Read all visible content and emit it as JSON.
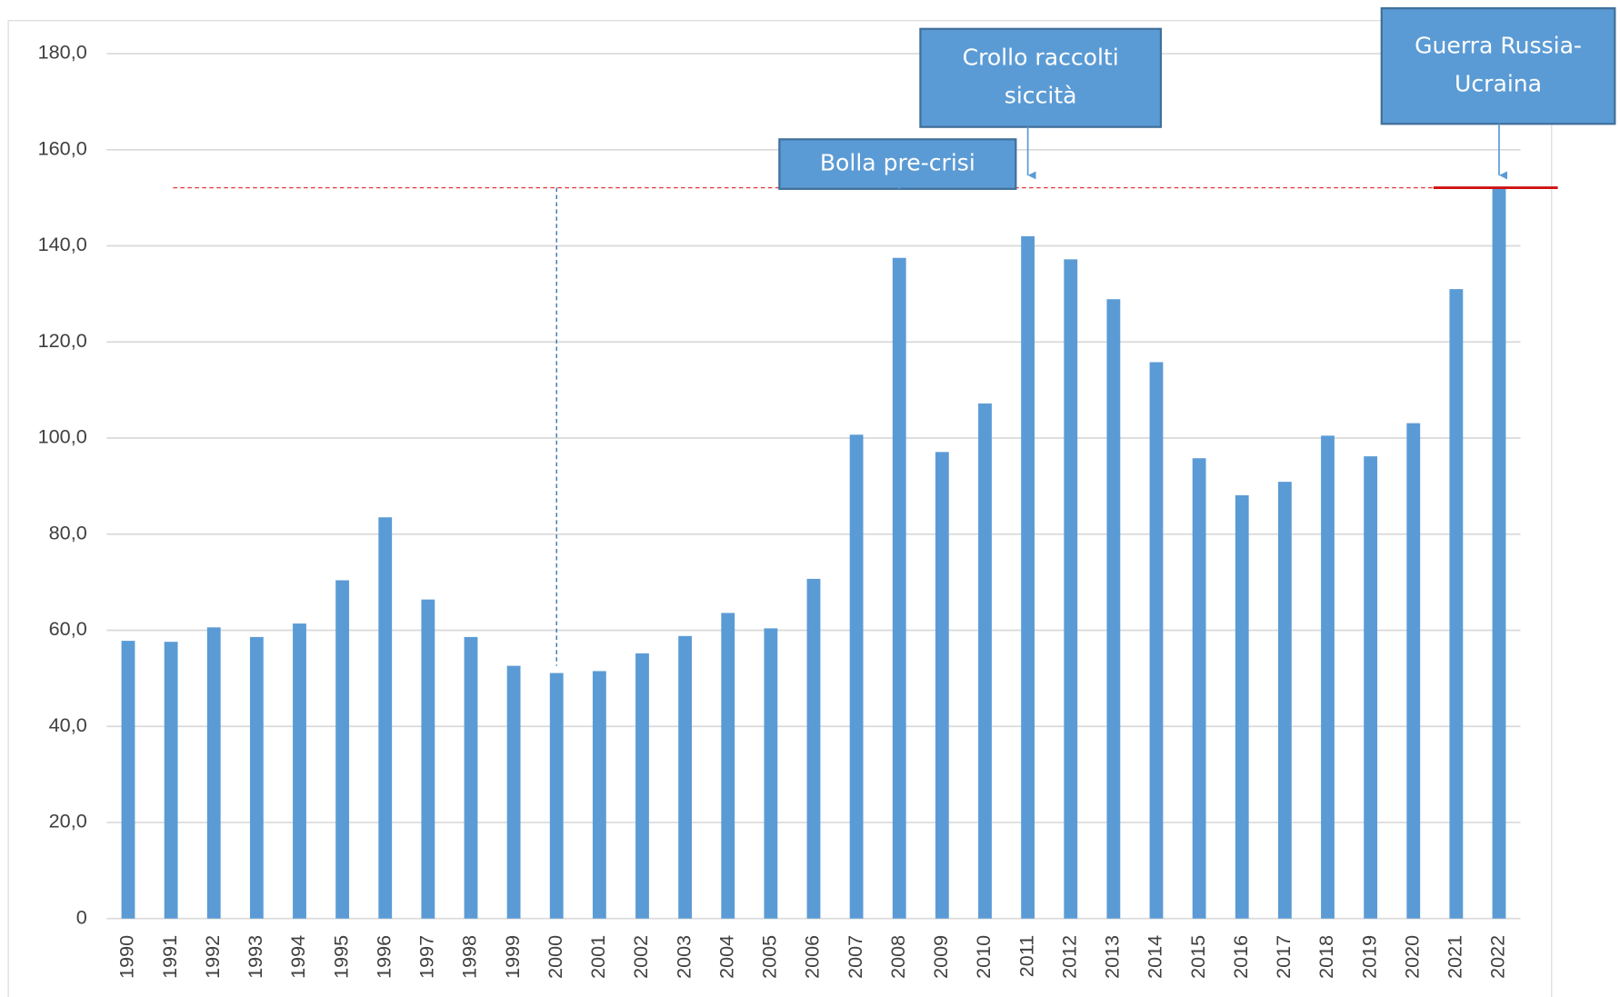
{
  "chart_data": {
    "type": "bar",
    "categories": [
      "1990",
      "1991",
      "1992",
      "1993",
      "1994",
      "1995",
      "1996",
      "1997",
      "1998",
      "1999",
      "2000",
      "2001",
      "2002",
      "2003",
      "2004",
      "2005",
      "2006",
      "2007",
      "2008",
      "2009",
      "2010",
      "2011",
      "2012",
      "2013",
      "2014",
      "2015",
      "2016",
      "2017",
      "2018",
      "2019",
      "2020",
      "2021",
      "2022"
    ],
    "values": [
      57.8,
      57.6,
      60.6,
      58.6,
      61.4,
      70.4,
      83.5,
      66.4,
      58.6,
      52.6,
      51.1,
      51.5,
      55.2,
      58.8,
      63.6,
      60.4,
      70.7,
      100.7,
      137.5,
      97.1,
      107.2,
      142.0,
      137.2,
      128.9,
      115.8,
      95.8,
      88.1,
      90.9,
      100.5,
      96.2,
      103.1,
      131.0,
      152.1
    ],
    "color": "#5b9bd5",
    "ylim": [
      0,
      180
    ],
    "yticks": [
      0,
      {
        "value": 20,
        "label": "20,0"
      },
      {
        "value": 40,
        "label": "40,0"
      },
      {
        "value": 60,
        "label": "60,0"
      },
      {
        "value": 80,
        "label": "80,0"
      },
      {
        "value": 100,
        "label": "100,0"
      },
      {
        "value": 120,
        "label": "120,0"
      },
      {
        "value": 140,
        "label": "140,0"
      },
      {
        "value": 160,
        "label": "160,0"
      },
      {
        "value": 180,
        "label": "180,0"
      }
    ],
    "grid": true,
    "annotations": [
      {
        "x": "2008",
        "text": [
          "Bolla pre-crisi"
        ]
      },
      {
        "x": "2011",
        "text": [
          "Crollo raccolti",
          "siccità"
        ]
      },
      {
        "x": "2022",
        "text": [
          "Guerra Russia-",
          "Ucraina"
        ]
      }
    ]
  }
}
